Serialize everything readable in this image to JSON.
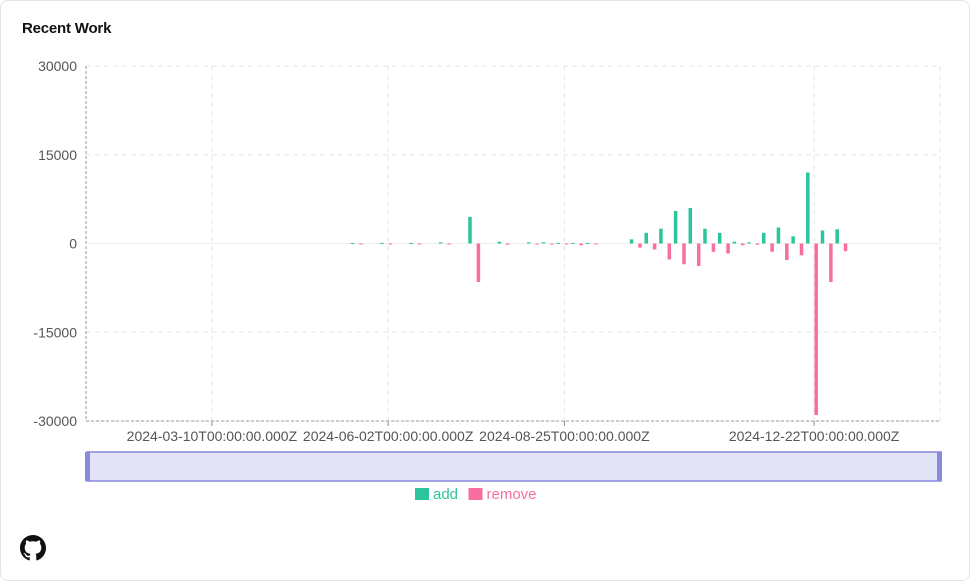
{
  "header": {
    "title": "Recent Work"
  },
  "chart_data": {
    "type": "bar",
    "title": "",
    "xlabel": "",
    "ylabel": "",
    "ylim": [
      -30000,
      30000
    ],
    "y_ticks": [
      30000,
      15000,
      0,
      -15000,
      -30000
    ],
    "x_range": [
      "2024-01-10",
      "2025-02-20"
    ],
    "x_ticks": [
      "2024-03-10T00:00:00.000Z",
      "2024-06-02T00:00:00.000Z",
      "2024-08-25T00:00:00.000Z",
      "2024-12-22T00:00:00.000Z"
    ],
    "grid": true,
    "legend_position": "bottom",
    "x": [
      "2024-05-18",
      "2024-06-01",
      "2024-06-15",
      "2024-06-29",
      "2024-07-13",
      "2024-07-27",
      "2024-08-10",
      "2024-08-17",
      "2024-08-24",
      "2024-08-31",
      "2024-09-07",
      "2024-09-28",
      "2024-10-05",
      "2024-10-12",
      "2024-10-19",
      "2024-10-26",
      "2024-11-02",
      "2024-11-09",
      "2024-11-16",
      "2024-11-23",
      "2024-11-30",
      "2024-12-07",
      "2024-12-14",
      "2024-12-21",
      "2024-12-28",
      "2025-01-04",
      "2025-01-11",
      "2025-01-18",
      "2025-01-25",
      "2025-02-01"
    ],
    "series": [
      {
        "name": "add",
        "color": "#2bc49c",
        "values": [
          100,
          100,
          100,
          200,
          4500,
          300,
          200,
          200,
          100,
          100,
          100,
          700,
          1800,
          2500,
          5500,
          6000,
          2500,
          1800,
          300,
          200,
          1800,
          2700,
          1200,
          12000,
          2200,
          2400,
          0,
          0,
          0,
          0
        ]
      },
      {
        "name": "remove",
        "color": "#f86ea0",
        "values": [
          -50,
          -50,
          -50,
          -100,
          -6500,
          -200,
          -100,
          -100,
          -100,
          -300,
          -100,
          -700,
          -1000,
          -2700,
          -3500,
          -3800,
          -1400,
          -1700,
          -300,
          -200,
          -1400,
          -2800,
          -2000,
          -29000,
          -6500,
          -1300,
          0,
          0,
          0,
          0
        ]
      }
    ]
  },
  "icons": {
    "github": "github-icon"
  }
}
